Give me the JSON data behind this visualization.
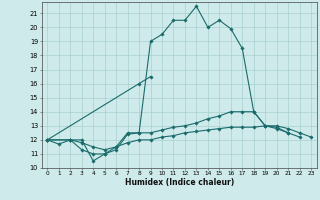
{
  "title": "",
  "xlabel": "Humidex (Indice chaleur)",
  "ylabel": "",
  "background_color": "#ceeaea",
  "grid_color": "#aacfcf",
  "line_color": "#1a6b6b",
  "xlim": [
    -0.5,
    23.5
  ],
  "ylim": [
    10,
    21.8
  ],
  "yticks": [
    10,
    11,
    12,
    13,
    14,
    15,
    16,
    17,
    18,
    19,
    20,
    21
  ],
  "xticks": [
    0,
    1,
    2,
    3,
    4,
    5,
    6,
    7,
    8,
    9,
    10,
    11,
    12,
    13,
    14,
    15,
    16,
    17,
    18,
    19,
    20,
    21,
    22,
    23
  ],
  "series": [
    {
      "x": [
        0,
        1,
        2,
        3,
        4,
        5,
        6,
        7,
        8,
        9,
        10,
        11,
        12,
        13,
        14,
        15,
        16,
        17,
        18,
        19,
        20,
        21
      ],
      "y": [
        12.0,
        11.7,
        12.0,
        12.0,
        10.5,
        11.0,
        11.5,
        12.5,
        12.5,
        19.0,
        19.5,
        20.5,
        20.5,
        21.5,
        20.0,
        20.5,
        19.9,
        18.5,
        14.0,
        13.0,
        12.8,
        12.5
      ]
    },
    {
      "x": [
        0,
        8,
        9
      ],
      "y": [
        12.0,
        16.0,
        16.5
      ]
    },
    {
      "x": [
        0,
        2,
        3,
        4,
        5,
        6,
        7,
        8,
        9,
        10,
        11,
        12,
        13,
        14,
        15,
        16,
        17,
        18,
        19,
        20,
        21,
        22
      ],
      "y": [
        12.0,
        12.0,
        11.3,
        11.0,
        11.0,
        11.3,
        12.4,
        12.5,
        12.5,
        12.7,
        12.9,
        13.0,
        13.2,
        13.5,
        13.7,
        14.0,
        14.0,
        14.0,
        13.0,
        12.9,
        12.5,
        12.2
      ]
    },
    {
      "x": [
        0,
        2,
        3,
        4,
        5,
        6,
        7,
        8,
        9,
        10,
        11,
        12,
        13,
        14,
        15,
        16,
        17,
        18,
        19,
        20,
        21,
        22,
        23
      ],
      "y": [
        12.0,
        12.0,
        11.8,
        11.5,
        11.3,
        11.5,
        11.8,
        12.0,
        12.0,
        12.2,
        12.3,
        12.5,
        12.6,
        12.7,
        12.8,
        12.9,
        12.9,
        12.9,
        13.0,
        13.0,
        12.8,
        12.5,
        12.2
      ]
    }
  ]
}
